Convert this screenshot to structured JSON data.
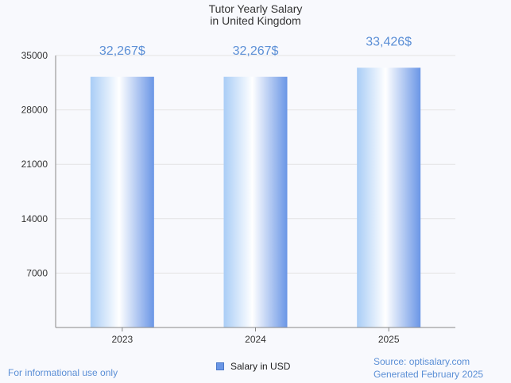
{
  "chart_data": {
    "type": "bar",
    "title": "Tutor Yearly Salary",
    "subtitle": "in United Kingdom",
    "categories": [
      "2023",
      "2024",
      "2025"
    ],
    "series": [
      {
        "name": "Salary in USD",
        "values": [
          32267,
          32267,
          33426
        ]
      }
    ],
    "data_labels": [
      "32,267$",
      "32,267$",
      "33,426$"
    ],
    "y_ticks": [
      "7000",
      "14000",
      "21000",
      "28000",
      "35000"
    ],
    "ylim": [
      0,
      35000
    ],
    "grid": true,
    "legend_position": "bottom-center",
    "colors": {
      "bar_light": "#ffffff",
      "bar_mid": "#a9cdf6",
      "bar_dark": "#6a96e6",
      "label": "#5b8fd6"
    }
  },
  "footer": {
    "disclaimer": "For informational use only",
    "source": "Source: optisalary.com",
    "generated": "Generated February 2025"
  }
}
